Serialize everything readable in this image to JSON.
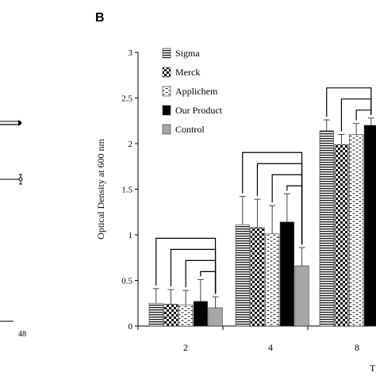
{
  "figure": {
    "panel_label": "B",
    "left_panel_tick_label": "48"
  },
  "chart_data": {
    "type": "bar",
    "title": "",
    "xlabel": "T",
    "ylabel": "Optical Density at 600 nm",
    "ylim": [
      0,
      3
    ],
    "yticks": [
      "0",
      "0.5",
      "1",
      "1.5",
      "2",
      "2.5",
      "3"
    ],
    "grid": false,
    "legend_position": "top-left",
    "categories": [
      "2",
      "4",
      "8"
    ],
    "series": [
      {
        "name": "Sigma",
        "pattern": "horizontal-lines",
        "values": [
          0.25,
          1.11,
          2.14
        ],
        "errors": [
          0.16,
          0.31,
          0.12
        ]
      },
      {
        "name": "Merck",
        "pattern": "checker",
        "values": [
          0.24,
          1.08,
          1.99
        ],
        "errors": [
          0.16,
          0.31,
          0.11
        ]
      },
      {
        "name": "Applichem",
        "pattern": "dashes",
        "values": [
          0.23,
          1.01,
          2.1
        ],
        "errors": [
          0.16,
          0.31,
          0.12
        ]
      },
      {
        "name": "Our Product",
        "pattern": "solid",
        "color": "#000000",
        "values": [
          0.27,
          1.14,
          2.2
        ],
        "errors": [
          0.24,
          0.31,
          0.08
        ]
      },
      {
        "name": "Control",
        "pattern": "solid",
        "color": "#a6a6a6",
        "values": [
          0.2,
          0.66,
          null
        ],
        "errors": [
          0.12,
          0.2,
          null
        ]
      }
    ]
  }
}
